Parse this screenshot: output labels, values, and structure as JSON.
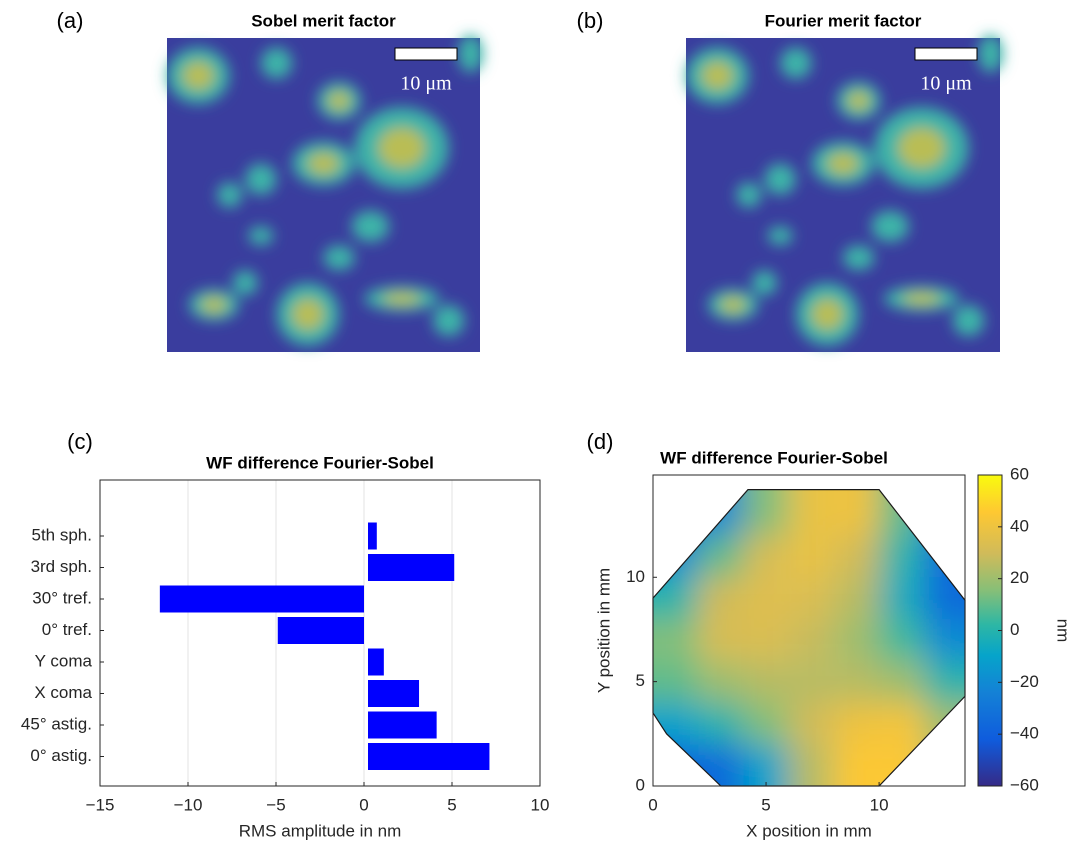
{
  "chart_data": [
    {
      "type": "image",
      "panel": "(a)",
      "title": "Sobel merit factor",
      "scale_bar_label": "10 μm"
    },
    {
      "type": "image",
      "panel": "(b)",
      "title": "Fourier merit factor",
      "scale_bar_label": "10 μm"
    },
    {
      "type": "bar",
      "orientation": "horizontal",
      "panel": "(c)",
      "title": "WF difference Fourier-Sobel",
      "categories": [
        "0° astig.",
        "45° astig.",
        "X coma",
        "Y coma",
        "0° tref.",
        "30° tref.",
        "3rd sph.",
        "5th sph."
      ],
      "values": [
        6.9,
        3.9,
        2.9,
        0.9,
        -4.9,
        -11.6,
        4.9,
        0.5
      ],
      "color": "#0000ff",
      "xlim": [
        -15,
        10
      ],
      "xticks": [
        {
          "value": -15,
          "label": "−15"
        },
        {
          "value": -10,
          "label": "−10"
        },
        {
          "value": -5,
          "label": "−5"
        },
        0,
        5,
        10
      ],
      "xlabel": "RMS amplitude in nm",
      "grid": true
    },
    {
      "type": "contour",
      "panel": "(d)",
      "title": "WF difference Fourier-Sobel",
      "x": [
        1,
        3,
        5,
        7,
        9,
        11,
        13
      ],
      "y": [
        13,
        11,
        9,
        7,
        5,
        3,
        1
      ],
      "z": [
        [
          -40,
          -20,
          15,
          38,
          40,
          10,
          -30
        ],
        [
          -20,
          10,
          32,
          38,
          30,
          0,
          -35
        ],
        [
          0,
          30,
          35,
          33,
          25,
          -5,
          -35
        ],
        [
          15,
          32,
          33,
          28,
          20,
          5,
          -20
        ],
        [
          10,
          20,
          25,
          25,
          25,
          20,
          0
        ],
        [
          -10,
          0,
          15,
          30,
          40,
          42,
          20
        ],
        [
          -40,
          -35,
          -10,
          25,
          45,
          45,
          25
        ]
      ],
      "xlim": [
        0,
        13.8
      ],
      "ylim": [
        0,
        14.9
      ],
      "xticks": [
        0,
        5,
        10
      ],
      "yticks": [
        0,
        5,
        10
      ],
      "xlabel": "X position in mm",
      "ylabel": "Y position in mm",
      "colormap": "parula",
      "clim": [
        -60,
        60
      ],
      "cticks": [
        {
          "value": -60,
          "label": "−60"
        },
        {
          "value": -40,
          "label": "−40"
        },
        {
          "value": -20,
          "label": "−20"
        },
        0,
        20,
        40,
        60
      ],
      "colorbar_label": "nm"
    }
  ]
}
